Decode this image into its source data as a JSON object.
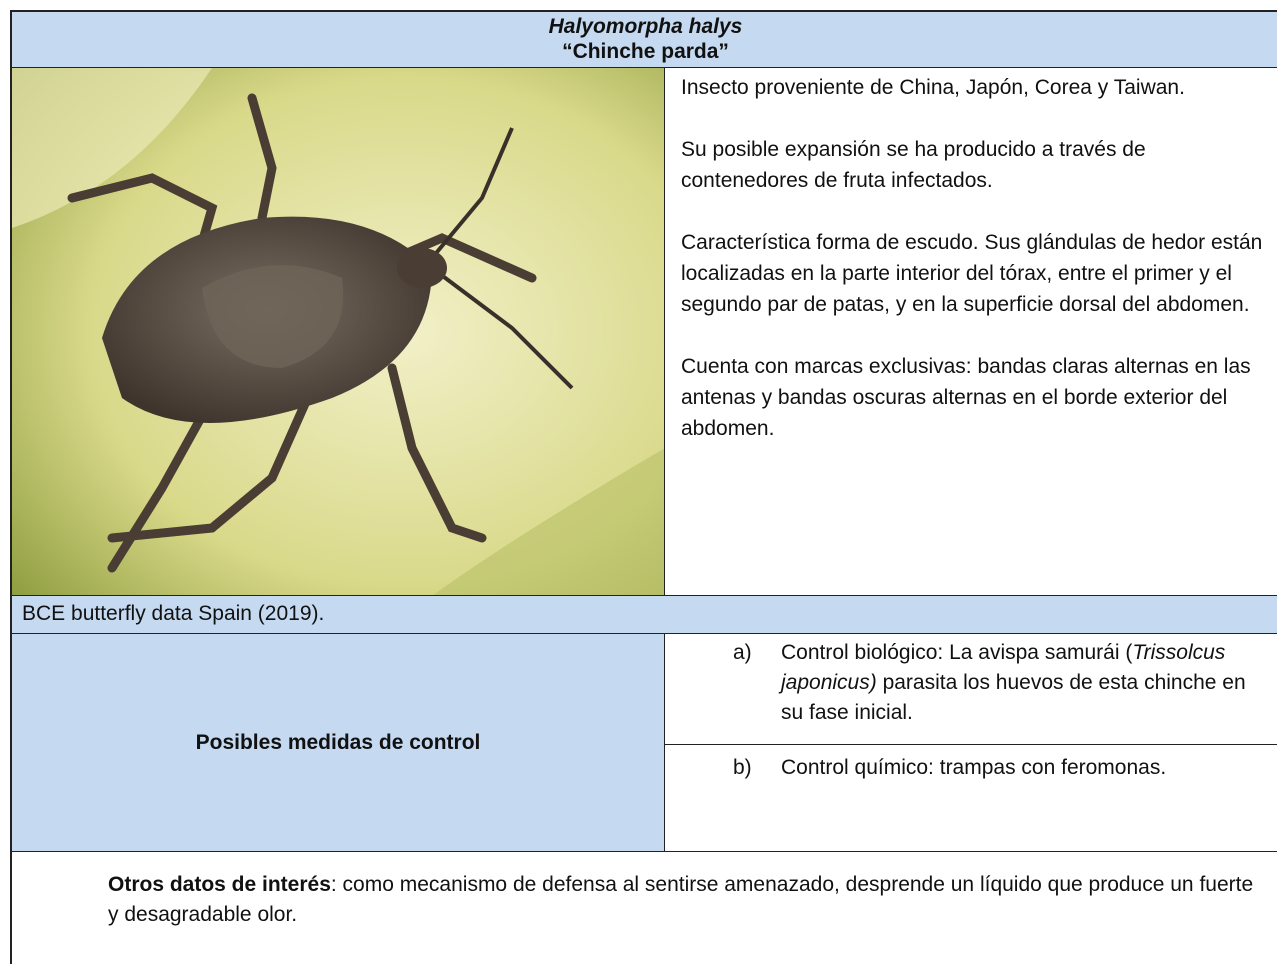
{
  "header": {
    "title": "Halyomorpha halys",
    "subtitle": "“Chinche parda”"
  },
  "description": [
    "Insecto proveniente de China, Japón, Corea y Taiwan.",
    "Su posible expansión se ha producido a través de contenedores de fruta infectados.",
    "Característica forma de escudo. Sus glándulas de hedor están localizadas en la parte interior del tórax, entre el primer y el segundo par de patas, y en la superficie dorsal del abdomen.",
    "Cuenta con marcas exclusivas: bandas claras alternas en las antenas y bandas oscuras alternas en el borde exterior del abdomen."
  ],
  "image_credit": "BCE butterfly data Spain (2019).",
  "control": {
    "heading": "Posibles medidas de control",
    "items": [
      {
        "marker": "a)",
        "before": "Control biológico: La avispa samurái (",
        "italic": "Trissolcus japonicus)",
        "after": " parasita los huevos de esta chinche en su fase inicial."
      },
      {
        "marker": "b)",
        "before": "Control químico: trampas con feromonas.",
        "italic": "",
        "after": ""
      }
    ]
  },
  "notes": {
    "label": "Otros datos de interés",
    "text": ": como mecanismo de defensa al sentirse amenazado, desprende un líquido que produce un fuerte y desagradable olor."
  }
}
